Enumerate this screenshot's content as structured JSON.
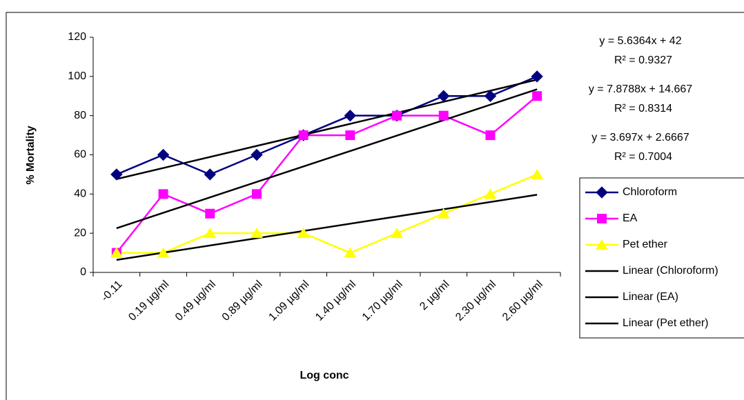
{
  "chart_data": {
    "type": "line",
    "x_label": "Log conc",
    "y_label": "% Mortality",
    "categories": [
      "-0.11",
      "0.19 µg/ml",
      "0.49 µg/ml",
      "0.89 µg/ml",
      "1.09 µg/ml",
      "1.40 µg/ml",
      "1.70 µg/ml",
      "2 µg/ml",
      "2.30 µg/ml",
      "2.60 µg/ml"
    ],
    "series": [
      {
        "name": "Chloroform",
        "color": "#000080",
        "marker": "diamond",
        "values": [
          50,
          60,
          50,
          60,
          70,
          80,
          80,
          90,
          90,
          100
        ]
      },
      {
        "name": "EA",
        "color": "#ff00ff",
        "marker": "square",
        "values": [
          10,
          40,
          30,
          40,
          70,
          70,
          80,
          80,
          70,
          90
        ]
      },
      {
        "name": "Pet ether",
        "color": "#ffff00",
        "marker": "triangle",
        "values": [
          10,
          10,
          20,
          20,
          20,
          10,
          20,
          30,
          40,
          50
        ]
      }
    ],
    "trendlines": [
      {
        "name": "Linear (Chloroform)",
        "color": "#000000",
        "equation": "y = 5.6364x + 42",
        "r2": "R² = 0.9327"
      },
      {
        "name": "Linear (EA)",
        "color": "#000000",
        "equation": "y = 7.8788x + 14.667",
        "r2": "R² = 0.8314"
      },
      {
        "name": "Linear (Pet ether)",
        "color": "#000000",
        "equation": "y = 3.697x + 2.6667",
        "r2": "R² = 0.7004"
      }
    ],
    "ylim": [
      0,
      120
    ],
    "yticks": [
      0,
      20,
      40,
      60,
      80,
      100,
      120
    ],
    "legend": "right"
  }
}
